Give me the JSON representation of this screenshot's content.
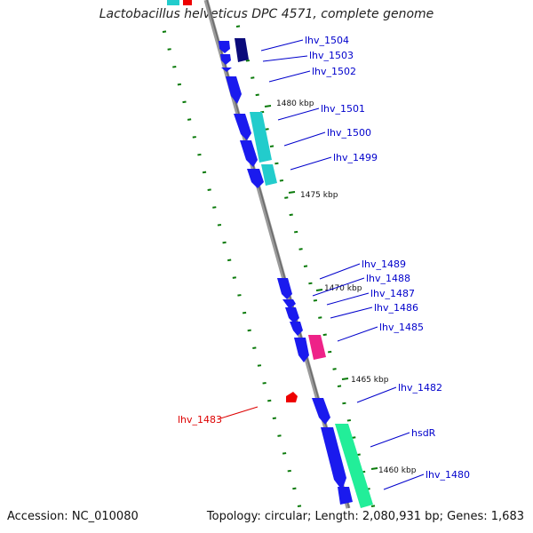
{
  "title": "Lactobacillus helveticus DPC 4571, complete genome",
  "footer": {
    "accession": "Accession: NC_010080",
    "summary": "Topology: circular; Length: 2,080,931 bp; Genes: 1,683"
  },
  "ticks": [
    "1480 kbp",
    "1475 kbp",
    "1470 kbp",
    "1465 kbp",
    "1460 kbp"
  ],
  "genes": [
    {
      "label": "lhv_1504",
      "color": "#0000cc"
    },
    {
      "label": "lhv_1503",
      "color": "#0000cc"
    },
    {
      "label": "lhv_1502",
      "color": "#0000cc"
    },
    {
      "label": "lhv_1501",
      "color": "#0000cc"
    },
    {
      "label": "lhv_1500",
      "color": "#0000cc"
    },
    {
      "label": "lhv_1499",
      "color": "#0000cc"
    },
    {
      "label": "lhv_1489",
      "color": "#0000cc"
    },
    {
      "label": "lhv_1488",
      "color": "#0000cc"
    },
    {
      "label": "lhv_1487",
      "color": "#0000cc"
    },
    {
      "label": "lhv_1486",
      "color": "#0000cc"
    },
    {
      "label": "lhv_1485",
      "color": "#0000cc"
    },
    {
      "label": "lhv_1482",
      "color": "#0000cc"
    },
    {
      "label": "hsdR",
      "color": "#0000cc"
    },
    {
      "label": "lhv_1480",
      "color": "#0000cc"
    },
    {
      "label": "lhv_1483",
      "color": "#dd0000"
    }
  ],
  "colors": {
    "backbone": "#8c8c8c",
    "ticks": "#0a7a0a",
    "cds": "#1a1aee",
    "cds_dark": "#0a0a7a",
    "cyan": "#22cccc",
    "magenta": "#ee2288",
    "green": "#22ee99",
    "red": "#ee0000"
  }
}
